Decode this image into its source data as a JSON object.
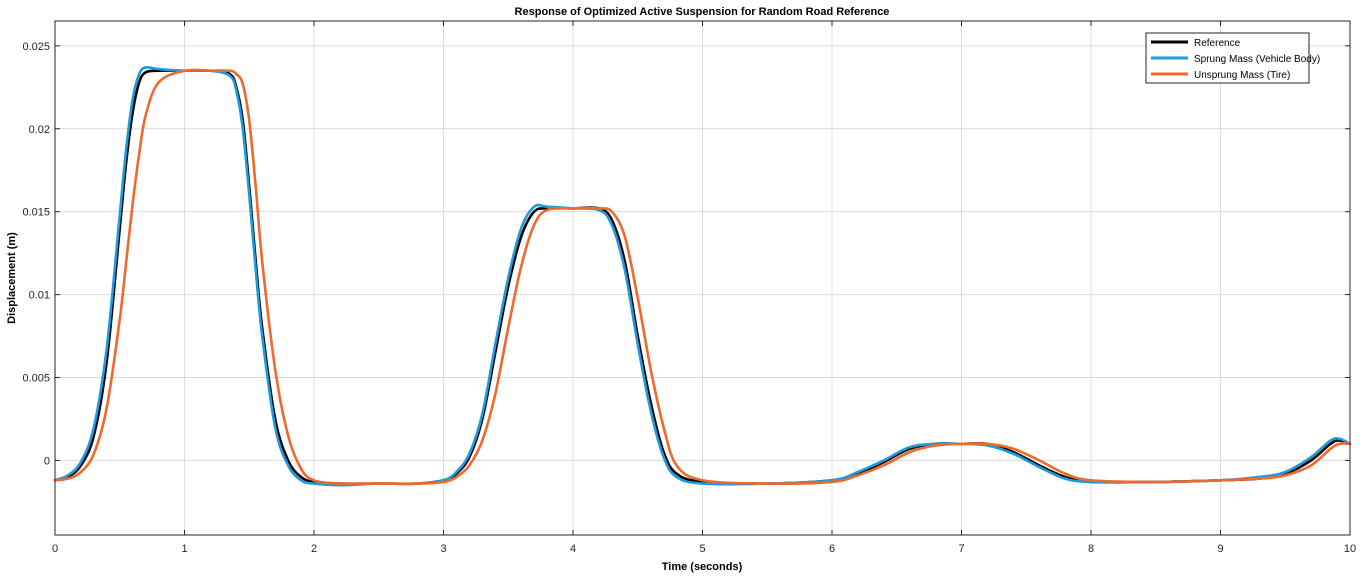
{
  "chart_data": {
    "type": "line",
    "title": "Response of Optimized Active Suspension for Random Road Reference",
    "xlabel": "Time (seconds)",
    "ylabel": "Displacement (m)",
    "xlim": [
      0,
      10
    ],
    "ylim": [
      -0.0045,
      0.0265
    ],
    "xticks": [
      0,
      1,
      2,
      3,
      4,
      5,
      6,
      7,
      8,
      9,
      10
    ],
    "xtick_labels": [
      "0",
      "1",
      "2",
      "3",
      "4",
      "5",
      "6",
      "7",
      "8",
      "9",
      "10"
    ],
    "yticks": [
      0,
      0.005,
      0.01,
      0.015,
      0.02,
      0.025
    ],
    "ytick_labels": [
      "0",
      "0.005",
      "0.01",
      "0.015",
      "0.02",
      "0.025"
    ],
    "grid": true,
    "legend_location": "top-right",
    "series": [
      {
        "name": "Reference",
        "color": "#000000",
        "x": [
          0,
          0.1,
          0.2,
          0.3,
          0.4,
          0.5,
          0.55,
          0.6,
          0.65,
          0.7,
          0.8,
          1.0,
          1.2,
          1.35,
          1.4,
          1.45,
          1.5,
          1.55,
          1.6,
          1.7,
          1.8,
          1.9,
          2.0,
          2.2,
          2.5,
          2.8,
          3.0,
          3.1,
          3.2,
          3.3,
          3.4,
          3.5,
          3.6,
          3.7,
          3.8,
          4.0,
          4.2,
          4.3,
          4.4,
          4.5,
          4.6,
          4.7,
          4.8,
          5.0,
          5.5,
          6.0,
          6.2,
          6.4,
          6.6,
          6.8,
          7.0,
          7.2,
          7.4,
          7.6,
          7.8,
          8.0,
          8.5,
          9.0,
          9.3,
          9.5,
          9.7,
          9.85,
          9.92,
          10.0
        ],
        "y": [
          -0.0012,
          -0.001,
          -0.0003,
          0.0015,
          0.006,
          0.014,
          0.018,
          0.021,
          0.0228,
          0.0234,
          0.0235,
          0.0235,
          0.0235,
          0.0233,
          0.0225,
          0.0205,
          0.0165,
          0.012,
          0.008,
          0.0025,
          0.0,
          -0.001,
          -0.0013,
          -0.0014,
          -0.0014,
          -0.0014,
          -0.0012,
          -0.0008,
          0.0002,
          0.0025,
          0.0065,
          0.0105,
          0.0135,
          0.015,
          0.0152,
          0.0152,
          0.0152,
          0.0145,
          0.012,
          0.0075,
          0.0035,
          0.0005,
          -0.0008,
          -0.0013,
          -0.0014,
          -0.0012,
          -0.0008,
          -0.0001,
          0.0007,
          0.001,
          0.001,
          0.001,
          0.0005,
          -0.0003,
          -0.001,
          -0.0013,
          -0.0013,
          -0.0012,
          -0.0011,
          -0.0008,
          0.0,
          0.001,
          0.0012,
          0.001
        ]
      },
      {
        "name": "Sprung Mass (Vehicle Body)",
        "color": "#1f9bdc",
        "x": [
          0,
          0.1,
          0.2,
          0.3,
          0.4,
          0.5,
          0.55,
          0.6,
          0.65,
          0.7,
          0.8,
          1.0,
          1.2,
          1.35,
          1.4,
          1.45,
          1.5,
          1.55,
          1.6,
          1.7,
          1.8,
          1.9,
          2.0,
          2.2,
          2.5,
          2.8,
          3.0,
          3.1,
          3.2,
          3.3,
          3.4,
          3.5,
          3.6,
          3.7,
          3.8,
          4.0,
          4.2,
          4.3,
          4.4,
          4.5,
          4.6,
          4.7,
          4.8,
          5.0,
          5.5,
          6.0,
          6.2,
          6.4,
          6.6,
          6.8,
          7.0,
          7.2,
          7.4,
          7.6,
          7.8,
          8.0,
          8.5,
          9.0,
          9.3,
          9.5,
          9.7,
          9.85,
          9.92,
          10.0
        ],
        "y": [
          -0.0012,
          -0.0009,
          -0.0001,
          0.002,
          0.0068,
          0.0148,
          0.0188,
          0.0218,
          0.0233,
          0.0237,
          0.0236,
          0.0235,
          0.0235,
          0.0232,
          0.0223,
          0.02,
          0.016,
          0.0115,
          0.0075,
          0.002,
          -0.0003,
          -0.0012,
          -0.0014,
          -0.0015,
          -0.0014,
          -0.0014,
          -0.0012,
          -0.0007,
          0.0004,
          0.0028,
          0.007,
          0.011,
          0.014,
          0.0153,
          0.0153,
          0.0152,
          0.0151,
          0.0142,
          0.0115,
          0.007,
          0.003,
          0.0002,
          -0.001,
          -0.0014,
          -0.0014,
          -0.0012,
          -0.0007,
          0.0,
          0.0008,
          0.001,
          0.001,
          0.0009,
          0.0004,
          -0.0004,
          -0.0011,
          -0.0013,
          -0.0013,
          -0.0012,
          -0.001,
          -0.0007,
          0.0002,
          0.0012,
          0.0013,
          0.001
        ]
      },
      {
        "name": "Unsprung Mass (Tire)",
        "color": "#ee6a2c",
        "x": [
          0,
          0.1,
          0.2,
          0.3,
          0.4,
          0.5,
          0.55,
          0.6,
          0.65,
          0.7,
          0.8,
          1.0,
          1.2,
          1.35,
          1.4,
          1.45,
          1.5,
          1.55,
          1.6,
          1.7,
          1.8,
          1.9,
          2.0,
          2.2,
          2.5,
          2.8,
          3.0,
          3.1,
          3.2,
          3.3,
          3.4,
          3.5,
          3.6,
          3.7,
          3.8,
          4.0,
          4.2,
          4.3,
          4.4,
          4.5,
          4.6,
          4.7,
          4.8,
          5.0,
          5.5,
          6.0,
          6.2,
          6.4,
          6.6,
          6.8,
          7.0,
          7.2,
          7.4,
          7.6,
          7.8,
          8.0,
          8.5,
          9.0,
          9.3,
          9.5,
          9.7,
          9.85,
          9.92,
          10.0
        ],
        "y": [
          -0.0012,
          -0.0011,
          -0.0007,
          0.0004,
          0.0032,
          0.0085,
          0.012,
          0.0155,
          0.0185,
          0.0208,
          0.0228,
          0.0235,
          0.0235,
          0.0235,
          0.0233,
          0.0227,
          0.0205,
          0.0165,
          0.012,
          0.0055,
          0.0015,
          -0.0005,
          -0.0012,
          -0.0014,
          -0.0014,
          -0.0014,
          -0.0013,
          -0.001,
          -0.0003,
          0.0012,
          0.004,
          0.008,
          0.0117,
          0.0142,
          0.0151,
          0.0152,
          0.0152,
          0.015,
          0.0135,
          0.0098,
          0.0055,
          0.002,
          -0.0003,
          -0.0012,
          -0.0014,
          -0.0013,
          -0.0009,
          -0.0003,
          0.0005,
          0.0009,
          0.001,
          0.001,
          0.0007,
          0.0,
          -0.0008,
          -0.0012,
          -0.0013,
          -0.0012,
          -0.0011,
          -0.0009,
          -0.0003,
          0.0007,
          0.001,
          0.001
        ]
      }
    ]
  }
}
